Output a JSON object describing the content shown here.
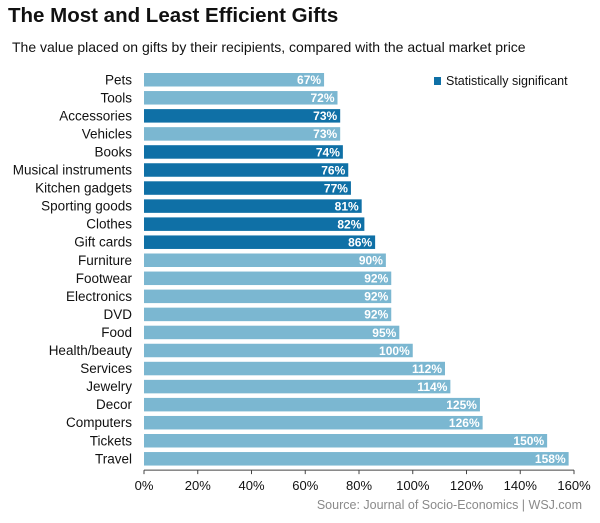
{
  "chart_data": {
    "type": "bar",
    "orientation": "horizontal",
    "title": "The Most and Least Efficient Gifts",
    "subtitle": "The value placed on gifts by their recipients, compared with the actual market price",
    "categories": [
      "Pets",
      "Tools",
      "Accessories",
      "Vehicles",
      "Books",
      "Musical instruments",
      "Kitchen gadgets",
      "Sporting goods",
      "Clothes",
      "Gift cards",
      "Furniture",
      "Footwear",
      "Electronics",
      "DVD",
      "Food",
      "Health/beauty",
      "Services",
      "Jewelry",
      "Decor",
      "Computers",
      "Tickets",
      "Travel"
    ],
    "values": [
      67,
      72,
      73,
      73,
      74,
      76,
      77,
      81,
      82,
      86,
      90,
      92,
      92,
      92,
      95,
      100,
      112,
      114,
      125,
      126,
      150,
      158
    ],
    "value_labels": [
      "67%",
      "72%",
      "73%",
      "73%",
      "74%",
      "76%",
      "77%",
      "81%",
      "82%",
      "86%",
      "90%",
      "92%",
      "92%",
      "92%",
      "95%",
      "100%",
      "112%",
      "114%",
      "125%",
      "126%",
      "150%",
      "158%"
    ],
    "significant": [
      false,
      false,
      true,
      false,
      true,
      true,
      true,
      true,
      true,
      true,
      false,
      false,
      false,
      false,
      false,
      false,
      false,
      false,
      false,
      false,
      false,
      false
    ],
    "xlim": [
      0,
      160
    ],
    "xticks": [
      "0%",
      "20%",
      "40%",
      "60%",
      "80%",
      "100%",
      "120%",
      "140%",
      "160%"
    ],
    "xlabel": "",
    "ylabel": "",
    "legend": {
      "label": "Statistically significant",
      "position": "top-right"
    },
    "colors": {
      "significant": "#0f70a6",
      "normal": "#7bb7d1"
    }
  },
  "source": "Source: Journal of Socio-Economics  |  WSJ.com"
}
